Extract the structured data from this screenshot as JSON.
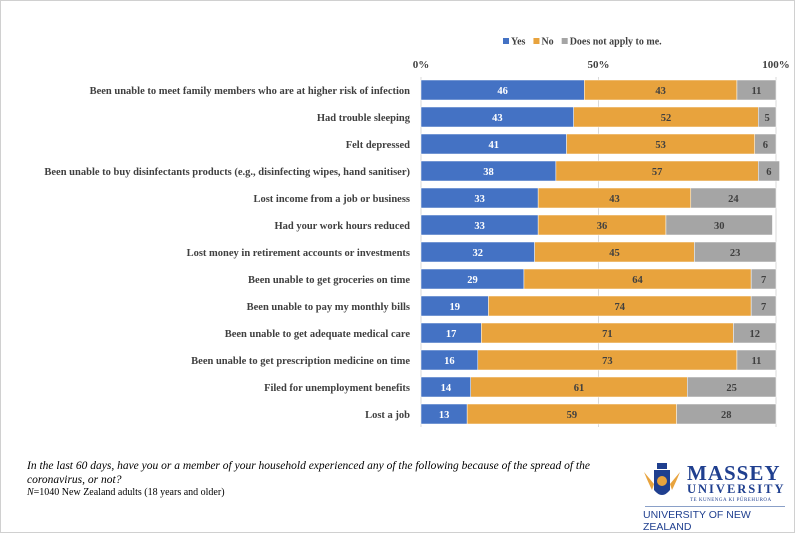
{
  "chart_data": {
    "type": "bar",
    "orientation": "horizontal",
    "stacked": true,
    "categories": [
      "Been unable to meet family members who are at higher risk of infection",
      "Had trouble sleeping",
      "Felt depressed",
      "Been unable to buy disinfectants products (e.g., disinfecting wipes, hand sanitiser)",
      "Lost income from a job or business",
      "Had your work hours reduced",
      "Lost money in retirement accounts or investments",
      "Been unable to get groceries on time",
      "Been unable to pay my monthly bills",
      "Been unable to get adequate medical care",
      "Been unable to get prescription medicine on time",
      "Filed for unemployment benefits",
      "Lost a job"
    ],
    "series": [
      {
        "name": "Yes",
        "color": "#4472c4",
        "values": [
          46,
          43,
          41,
          38,
          33,
          33,
          32,
          29,
          19,
          17,
          16,
          14,
          13
        ]
      },
      {
        "name": "No",
        "color": "#e8a33d",
        "values": [
          43,
          52,
          53,
          57,
          43,
          36,
          45,
          64,
          74,
          71,
          73,
          61,
          59
        ]
      },
      {
        "name": "Does not apply to me.",
        "color": "#a5a5a5",
        "values": [
          11,
          5,
          6,
          6,
          24,
          30,
          23,
          7,
          7,
          12,
          11,
          25,
          28
        ]
      }
    ],
    "xticks": [
      "0%",
      "50%",
      "100%"
    ],
    "xlim": [
      0,
      100
    ],
    "legend": "top",
    "grid": true
  },
  "footer": {
    "question": "In the last 60 days, have you or a member of your household experienced any of the following because of the spread of the coronavirus, or not?",
    "sample_n": "N",
    "sample_rest": "=1040 New Zealand adults (18 years and older)"
  },
  "logo": {
    "name": "MASSEY",
    "university": "UNIVERSITY",
    "maori": "TE KUNENGA KI PŪREHUROA",
    "tagline": "UNIVERSITY OF NEW ZEALAND"
  }
}
